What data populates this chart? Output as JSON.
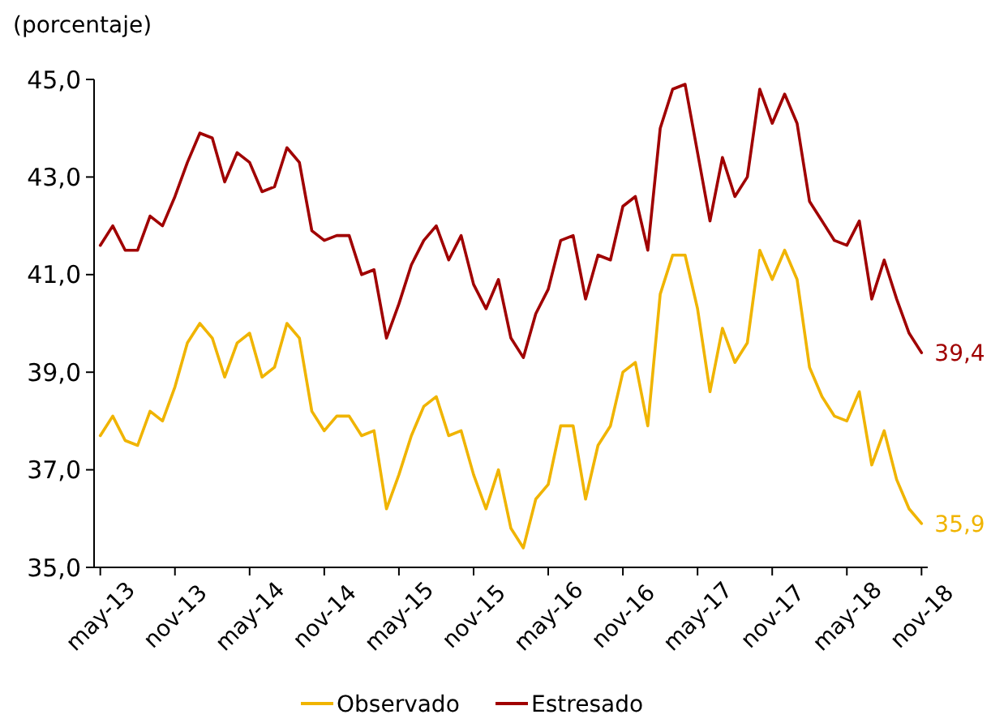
{
  "chart_data": {
    "type": "line",
    "ylabel": "(porcentaje)",
    "categories": [
      "may-13",
      null,
      null,
      null,
      null,
      null,
      "nov-13",
      null,
      null,
      null,
      null,
      null,
      "may-14",
      null,
      null,
      null,
      null,
      null,
      "nov-14",
      null,
      null,
      null,
      null,
      null,
      "may-15",
      null,
      null,
      null,
      null,
      null,
      "nov-15",
      null,
      null,
      null,
      null,
      null,
      "may-16",
      null,
      null,
      null,
      null,
      null,
      "nov-16",
      null,
      null,
      null,
      null,
      null,
      "may-17",
      null,
      null,
      null,
      null,
      null,
      "nov-17",
      null,
      null,
      null,
      null,
      null,
      "may-18",
      null,
      null,
      null,
      null,
      null,
      "nov-18"
    ],
    "ylim": [
      35,
      45
    ],
    "yticks": [
      {
        "value": 35,
        "label": "35,0"
      },
      {
        "value": 37,
        "label": "37,0"
      },
      {
        "value": 39,
        "label": "39,0"
      },
      {
        "value": 41,
        "label": "41,0"
      },
      {
        "value": 43,
        "label": "43,0"
      },
      {
        "value": 45,
        "label": "45,0"
      }
    ],
    "series": [
      {
        "name": "Observado",
        "color": "#f0b400",
        "values": [
          37.7,
          38.1,
          37.6,
          37.5,
          38.2,
          38.0,
          38.7,
          39.6,
          40.0,
          39.7,
          38.9,
          39.6,
          39.8,
          38.9,
          39.1,
          40.0,
          39.7,
          38.2,
          37.8,
          38.1,
          38.1,
          37.7,
          37.8,
          36.2,
          36.9,
          37.7,
          38.3,
          38.5,
          37.7,
          37.8,
          36.9,
          36.2,
          37.0,
          35.8,
          35.4,
          36.4,
          36.7,
          37.9,
          37.9,
          36.4,
          37.5,
          37.9,
          39.0,
          39.2,
          37.9,
          40.6,
          41.4,
          41.4,
          40.3,
          38.6,
          39.9,
          39.2,
          39.6,
          41.5,
          40.9,
          41.5,
          40.9,
          39.1,
          38.5,
          38.1,
          38.0,
          38.6,
          37.1,
          37.8,
          36.8,
          36.2,
          35.9
        ],
        "value_labels": [
          null,
          null,
          null,
          null,
          null,
          null,
          null,
          null,
          null,
          null,
          null,
          null,
          null,
          null,
          null,
          null,
          null,
          null,
          null,
          null,
          null,
          null,
          null,
          null,
          null,
          null,
          null,
          null,
          null,
          null,
          null,
          null,
          null,
          null,
          null,
          null,
          null,
          null,
          null,
          null,
          null,
          null,
          null,
          null,
          null,
          null,
          null,
          null,
          null,
          null,
          null,
          null,
          null,
          null,
          null,
          null,
          null,
          null,
          null,
          null,
          null,
          null,
          null,
          null,
          null,
          null,
          "35,9"
        ]
      },
      {
        "name": "Estresado",
        "color": "#a00000",
        "values": [
          41.6,
          42.0,
          41.5,
          41.5,
          42.2,
          42.0,
          42.6,
          43.3,
          43.9,
          43.8,
          42.9,
          43.5,
          43.3,
          42.7,
          42.8,
          43.6,
          43.3,
          41.9,
          41.7,
          41.8,
          41.8,
          41.0,
          41.1,
          39.7,
          40.4,
          41.2,
          41.7,
          42.0,
          41.3,
          41.8,
          40.8,
          40.3,
          40.9,
          39.7,
          39.3,
          40.2,
          40.7,
          41.7,
          41.8,
          40.5,
          41.4,
          41.3,
          42.4,
          42.6,
          41.5,
          44.0,
          44.8,
          44.9,
          43.5,
          42.1,
          43.4,
          42.6,
          43.0,
          44.8,
          44.1,
          44.7,
          44.1,
          42.5,
          42.1,
          41.7,
          41.6,
          42.1,
          40.5,
          41.3,
          40.5,
          39.8,
          39.4
        ],
        "value_labels": [
          null,
          null,
          null,
          null,
          null,
          null,
          null,
          null,
          null,
          null,
          null,
          null,
          null,
          null,
          null,
          null,
          null,
          null,
          null,
          null,
          null,
          null,
          null,
          null,
          null,
          null,
          null,
          null,
          null,
          null,
          null,
          null,
          null,
          null,
          null,
          null,
          null,
          null,
          null,
          null,
          null,
          null,
          null,
          null,
          null,
          null,
          null,
          null,
          null,
          null,
          null,
          null,
          null,
          null,
          null,
          null,
          null,
          null,
          null,
          null,
          null,
          null,
          null,
          null,
          null,
          null,
          "39,4"
        ]
      }
    ],
    "legend": "bottom",
    "marker": "none",
    "line_style": "solid"
  }
}
